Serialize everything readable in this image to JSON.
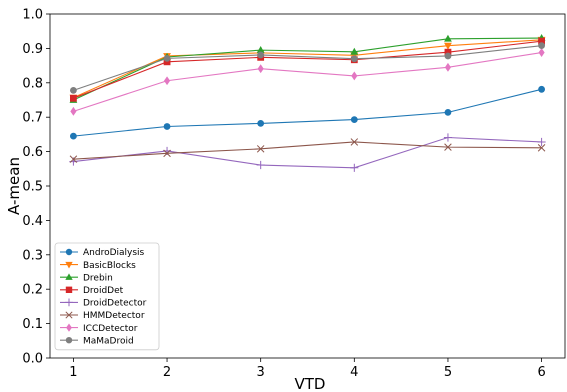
{
  "chart_data": {
    "type": "line",
    "xlabel": "VTD",
    "ylabel": "A-mean",
    "x": [
      1,
      2,
      3,
      4,
      5,
      6
    ],
    "xlim": [
      0.75,
      6.25
    ],
    "ylim": [
      0.0,
      1.0
    ],
    "xticks": [
      "1",
      "2",
      "3",
      "4",
      "5",
      "6"
    ],
    "yticks": [
      "0.0",
      "0.1",
      "0.2",
      "0.3",
      "0.4",
      "0.5",
      "0.6",
      "0.7",
      "0.8",
      "0.9",
      "1.0"
    ],
    "grid": false,
    "legend_position": "lower-left",
    "series": [
      {
        "name": "AndroDialysis",
        "color": "#1f77b4",
        "marker": "circle",
        "values": [
          0.645,
          0.673,
          0.682,
          0.693,
          0.714,
          0.781
        ]
      },
      {
        "name": "BasicBlocks",
        "color": "#ff7f0e",
        "marker": "triangle-down",
        "values": [
          0.757,
          0.878,
          0.887,
          0.88,
          0.908,
          0.925
        ]
      },
      {
        "name": "Drebin",
        "color": "#2ca02c",
        "marker": "triangle-up",
        "values": [
          0.75,
          0.875,
          0.895,
          0.89,
          0.928,
          0.93
        ]
      },
      {
        "name": "DroidDet",
        "color": "#d62728",
        "marker": "square",
        "values": [
          0.755,
          0.861,
          0.874,
          0.867,
          0.889,
          0.921
        ]
      },
      {
        "name": "DroidDetector",
        "color": "#9467bd",
        "marker": "plus",
        "values": [
          0.571,
          0.602,
          0.561,
          0.553,
          0.641,
          0.628
        ]
      },
      {
        "name": "HMMDetector",
        "color": "#8c564b",
        "marker": "x",
        "values": [
          0.578,
          0.595,
          0.608,
          0.628,
          0.613,
          0.611
        ]
      },
      {
        "name": "ICCDetector",
        "color": "#e377c2",
        "marker": "diamond",
        "values": [
          0.717,
          0.806,
          0.841,
          0.82,
          0.845,
          0.888
        ]
      },
      {
        "name": "MaMaDroid",
        "color": "#7f7f7f",
        "marker": "circle",
        "values": [
          0.778,
          0.871,
          0.881,
          0.87,
          0.878,
          0.908
        ]
      }
    ]
  }
}
